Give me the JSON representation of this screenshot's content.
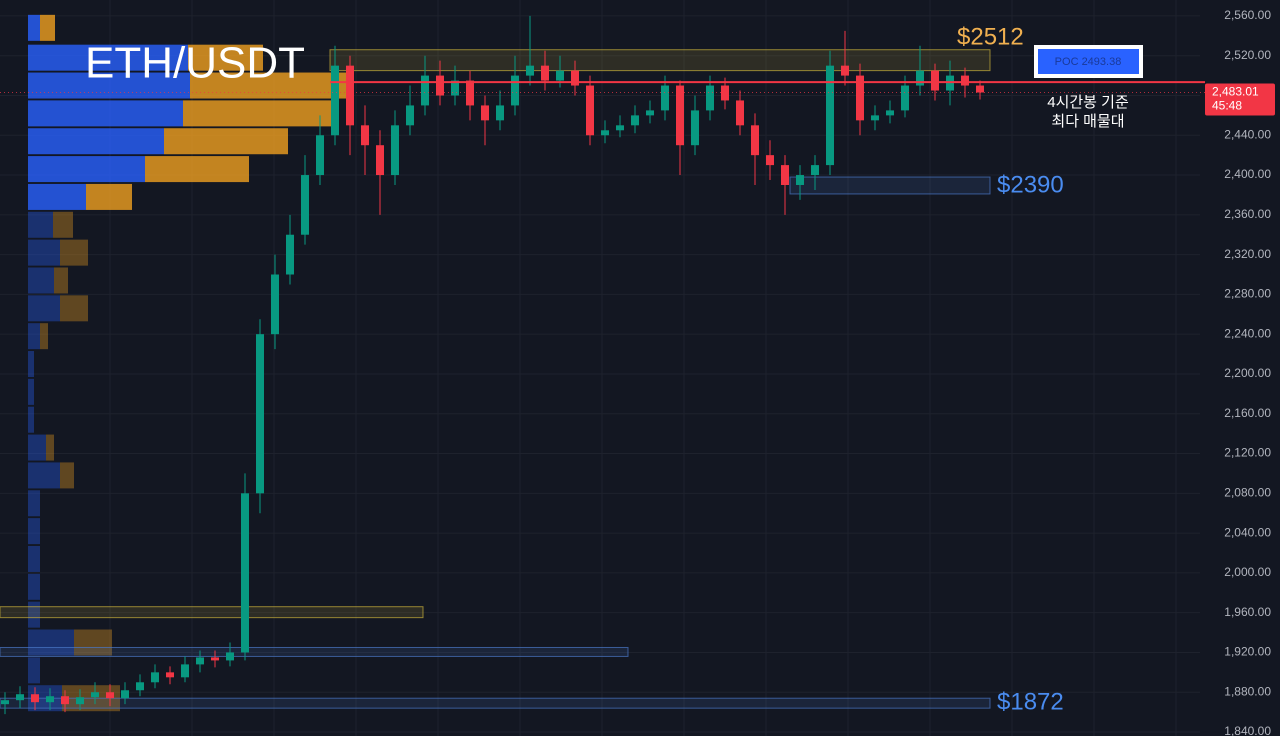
{
  "chart_data": {
    "type": "candlestick",
    "title": "ETH/USDT",
    "categories": [
      null,
      null,
      null,
      null,
      null,
      null,
      null,
      null,
      null,
      null,
      null,
      null,
      null,
      null,
      null,
      null,
      null,
      null,
      null,
      null,
      null,
      null,
      null,
      null,
      null,
      null,
      null,
      null,
      null,
      null,
      null,
      null,
      null,
      null,
      null,
      null,
      null,
      null,
      null,
      null,
      null,
      null,
      null,
      null,
      null,
      null,
      null,
      null,
      null,
      null,
      null,
      null,
      null,
      null,
      null,
      null,
      null,
      null,
      null,
      null,
      null,
      null,
      null,
      null,
      null,
      null
    ],
    "open": [
      1868,
      1872,
      1878,
      1870,
      1876,
      1868,
      1875,
      1880,
      1874,
      1882,
      1890,
      1900,
      1895,
      1908,
      1915,
      1912,
      1920,
      2080,
      2240,
      2300,
      2340,
      2400,
      2440,
      2510,
      2450,
      2430,
      2400,
      2450,
      2470,
      2500,
      2480,
      2495,
      2470,
      2455,
      2470,
      2500,
      2510,
      2495,
      2505,
      2490,
      2440,
      2445,
      2450,
      2460,
      2465,
      2490,
      2430,
      2465,
      2490,
      2475,
      2450,
      2420,
      2410,
      2390,
      2400,
      2410,
      2510,
      2500,
      2455,
      2460,
      2465,
      2490,
      2505,
      2485,
      2500,
      2490
    ],
    "high": [
      1880,
      1886,
      1885,
      1884,
      1882,
      1883,
      1890,
      1888,
      1890,
      1898,
      1908,
      1906,
      1916,
      1922,
      1922,
      1930,
      2100,
      2255,
      2320,
      2360,
      2420,
      2460,
      2530,
      2520,
      2470,
      2445,
      2465,
      2490,
      2520,
      2515,
      2510,
      2505,
      2480,
      2485,
      2520,
      2560,
      2525,
      2520,
      2515,
      2500,
      2455,
      2460,
      2470,
      2475,
      2500,
      2495,
      2480,
      2500,
      2498,
      2485,
      2462,
      2435,
      2420,
      2410,
      2420,
      2525,
      2545,
      2512,
      2470,
      2475,
      2500,
      2530,
      2512,
      2515,
      2508,
      2495
    ],
    "low": [
      1858,
      1864,
      1862,
      1862,
      1860,
      1862,
      1868,
      1866,
      1868,
      1876,
      1884,
      1888,
      1890,
      1900,
      1905,
      1906,
      1912,
      2060,
      2225,
      2290,
      2330,
      2390,
      2430,
      2420,
      2400,
      2360,
      2390,
      2440,
      2460,
      2470,
      2470,
      2455,
      2430,
      2445,
      2460,
      2490,
      2485,
      2488,
      2480,
      2430,
      2432,
      2438,
      2442,
      2452,
      2455,
      2400,
      2420,
      2455,
      2466,
      2440,
      2390,
      2395,
      2360,
      2375,
      2385,
      2400,
      2490,
      2440,
      2445,
      2452,
      2458,
      2480,
      2475,
      2470,
      2478,
      2476
    ],
    "close": [
      1872,
      1878,
      1870,
      1876,
      1868,
      1875,
      1880,
      1874,
      1882,
      1890,
      1900,
      1895,
      1908,
      1915,
      1912,
      1920,
      2080,
      2240,
      2300,
      2340,
      2400,
      2440,
      2510,
      2450,
      2430,
      2400,
      2450,
      2470,
      2500,
      2480,
      2495,
      2470,
      2455,
      2470,
      2500,
      2510,
      2495,
      2505,
      2490,
      2440,
      2445,
      2450,
      2460,
      2465,
      2490,
      2430,
      2465,
      2490,
      2475,
      2450,
      2420,
      2410,
      2390,
      2400,
      2410,
      2510,
      2500,
      2455,
      2460,
      2465,
      2490,
      2505,
      2485,
      2500,
      2490,
      2483.01
    ],
    "up_color": "#089981",
    "down_color": "#f23645",
    "ylim": [
      1836,
      2576
    ],
    "yticks": [
      {
        "value": 1840,
        "label": "1,840.00"
      },
      {
        "value": 1880,
        "label": "1,880.00"
      },
      {
        "value": 1920,
        "label": "1,920.00"
      },
      {
        "value": 1960,
        "label": "1,960.00"
      },
      {
        "value": 2000,
        "label": "2,000.00"
      },
      {
        "value": 2040,
        "label": "2,040.00"
      },
      {
        "value": 2080,
        "label": "2,080.00"
      },
      {
        "value": 2120,
        "label": "2,120.00"
      },
      {
        "value": 2160,
        "label": "2,160.00"
      },
      {
        "value": 2200,
        "label": "2,200.00"
      },
      {
        "value": 2240,
        "label": "2,240.00"
      },
      {
        "value": 2280,
        "label": "2,280.00"
      },
      {
        "value": 2320,
        "label": "2,320.00"
      },
      {
        "value": 2360,
        "label": "2,360.00"
      },
      {
        "value": 2400,
        "label": "2,400.00"
      },
      {
        "value": 2440,
        "label": "2,440.00"
      },
      {
        "value": 2480,
        "label": "2,480.00"
      },
      {
        "value": 2520,
        "label": "2,520.00"
      },
      {
        "value": 2560,
        "label": "2,560.00"
      }
    ],
    "grid": true,
    "volume_profile": {
      "prices": [
        2548,
        2518,
        2490,
        2462,
        2434,
        2406,
        2378,
        2350,
        2322,
        2294,
        2266,
        2238,
        2210,
        2182,
        2154,
        2126,
        2098,
        2070,
        2042,
        2014,
        1986,
        1958,
        1930,
        1902,
        1874
      ],
      "buy": [
        12,
        160,
        162,
        155,
        136,
        117,
        58,
        25,
        32,
        26,
        32,
        12,
        6,
        6,
        6,
        18,
        32,
        12,
        12,
        12,
        12,
        12,
        46,
        12,
        34
      ],
      "sell": [
        15,
        75,
        162,
        148,
        124,
        104,
        46,
        20,
        28,
        14,
        28,
        8,
        0,
        0,
        0,
        8,
        14,
        0,
        0,
        0,
        0,
        0,
        38,
        0,
        58
      ],
      "buy_color": "#2962ff",
      "sell_color": "#f0a020"
    },
    "zones": [
      {
        "from": 2505,
        "to": 2526,
        "color": "#c9b03a"
      },
      {
        "from": 2381,
        "to": 2398,
        "color": "#4a78c8"
      },
      {
        "from": 1864,
        "to": 1874,
        "color": "#4a78c8"
      },
      {
        "from": 1955,
        "to": 1966,
        "color": "#c9b03a"
      },
      {
        "from": 1916,
        "to": 1925,
        "color": "#4a78c8"
      }
    ],
    "poc": 2493.38,
    "poc_label": "POC 2493.38",
    "last_price": 2483.01,
    "last_price_label": "2,483.01",
    "countdown": "45:48",
    "annotations": {
      "top_level": "$2512",
      "mid_level": "$2390",
      "low_level": "$1872",
      "poc_note_1": "4시간봉 기준",
      "poc_note_2": "최다 매물대"
    }
  }
}
